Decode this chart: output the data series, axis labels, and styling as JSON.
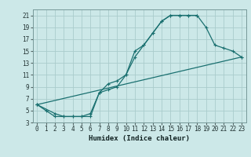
{
  "bg_color": "#cce8e8",
  "grid_color": "#aacccc",
  "line_color": "#1a7070",
  "xlabel": "Humidex (Indice chaleur)",
  "xlim": [
    -0.5,
    23.5
  ],
  "ylim": [
    3,
    22
  ],
  "xticks": [
    0,
    1,
    2,
    3,
    4,
    5,
    6,
    7,
    8,
    9,
    10,
    11,
    12,
    13,
    14,
    15,
    16,
    17,
    18,
    19,
    20,
    21,
    22,
    23
  ],
  "yticks": [
    3,
    5,
    7,
    9,
    11,
    13,
    15,
    17,
    19,
    21
  ],
  "line1": {
    "x": [
      0,
      1,
      2,
      3,
      4,
      5,
      6,
      7,
      8,
      9,
      10,
      11,
      12,
      13,
      14,
      15,
      16,
      17,
      18
    ],
    "y": [
      6,
      5,
      4,
      4,
      4,
      4,
      4,
      8,
      9.5,
      10,
      11,
      14,
      16,
      18,
      20,
      21,
      21,
      21,
      21
    ]
  },
  "line2": {
    "x": [
      0,
      2,
      3,
      4,
      5,
      6,
      7,
      8,
      9,
      10,
      11,
      12,
      13,
      14,
      15,
      16,
      17,
      18,
      19,
      20,
      21,
      22,
      23
    ],
    "y": [
      6,
      4.5,
      4,
      4,
      4,
      4.5,
      8,
      8.5,
      9,
      11,
      15,
      16,
      18,
      20,
      21,
      21,
      21,
      21,
      19,
      16,
      15.5,
      15,
      14
    ]
  },
  "line3": {
    "x": [
      0,
      23
    ],
    "y": [
      6,
      14
    ]
  },
  "axis_fontsize": 6.5,
  "tick_fontsize": 5.5,
  "marker_size": 3.0
}
